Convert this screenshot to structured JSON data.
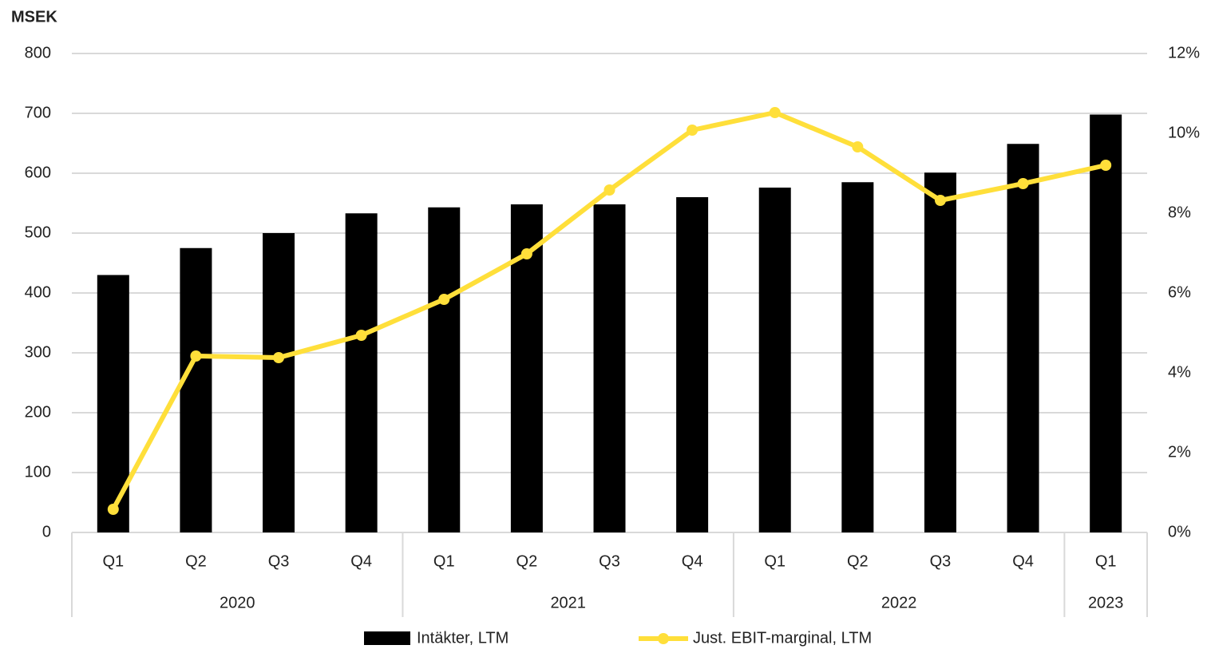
{
  "chart_data": {
    "type": "bar-line",
    "y_title": "MSEK",
    "categories": [
      "Q1",
      "Q2",
      "Q3",
      "Q4",
      "Q1",
      "Q2",
      "Q3",
      "Q4",
      "Q1",
      "Q2",
      "Q3",
      "Q4",
      "Q1"
    ],
    "groups": [
      {
        "name": "2020",
        "count": 4
      },
      {
        "name": "2021",
        "count": 4
      },
      {
        "name": "2022",
        "count": 4
      },
      {
        "name": "2023",
        "count": 1
      }
    ],
    "series": [
      {
        "name": "Intäkter, LTM",
        "type": "bar",
        "color": "#000000",
        "values": [
          430,
          475,
          500,
          533,
          543,
          548,
          548,
          560,
          576,
          585,
          601,
          649,
          698
        ]
      },
      {
        "name": "Just. EBIT-marginal, LTM",
        "type": "line",
        "axis": "y2",
        "color": "#ffdf3a",
        "values": [
          0.58,
          4.42,
          4.38,
          4.94,
          5.84,
          6.98,
          8.58,
          10.08,
          10.52,
          9.66,
          8.32,
          8.74,
          9.2
        ]
      }
    ],
    "ylim": [
      0,
      800
    ],
    "yticks": [
      0,
      100,
      200,
      300,
      400,
      500,
      600,
      700,
      800
    ],
    "y2lim": [
      0,
      12
    ],
    "y2ticks": [
      {
        "value": 0,
        "label": "0%"
      },
      {
        "value": 2,
        "label": "2%"
      },
      {
        "value": 4,
        "label": "4%"
      },
      {
        "value": 6,
        "label": "6%"
      },
      {
        "value": 8,
        "label": "8%"
      },
      {
        "value": 10,
        "label": "10%"
      },
      {
        "value": 12,
        "label": "12%"
      }
    ],
    "grid": true,
    "legend": "bottom"
  }
}
